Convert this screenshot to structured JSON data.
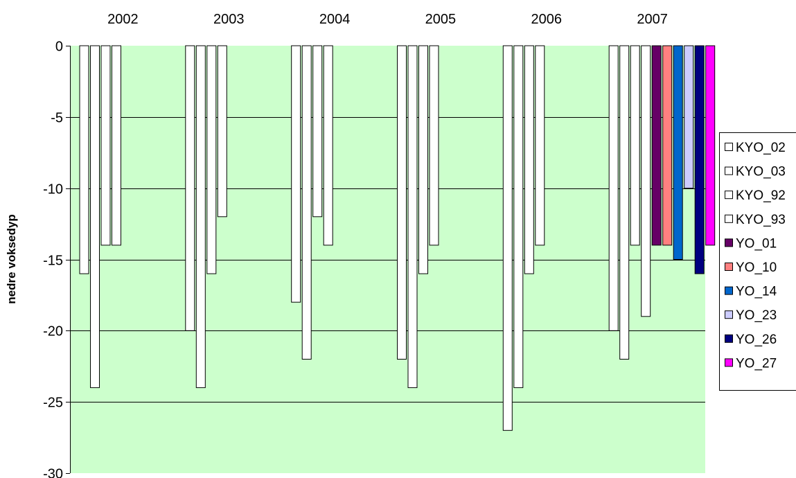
{
  "chart_data": {
    "type": "bar",
    "title": "",
    "xlabel": "",
    "ylabel": "nedre voksedyp",
    "ylim": [
      -30,
      0
    ],
    "yticks": [
      0,
      -5,
      -10,
      -15,
      -20,
      -25,
      -30
    ],
    "grid": true,
    "legend_position": "right",
    "plot_background": "#ccffcc",
    "categories": [
      "2002",
      "2003",
      "2004",
      "2005",
      "2006",
      "2007"
    ],
    "series": [
      {
        "name": "KYO_02",
        "color": "#ffffff",
        "values": [
          -16,
          -20,
          -18,
          -22,
          -27,
          -20
        ]
      },
      {
        "name": "KYO_03",
        "color": "#ffffff",
        "values": [
          -24,
          -24,
          -22,
          -24,
          -24,
          -22
        ]
      },
      {
        "name": "KYO_92",
        "color": "#ffffff",
        "values": [
          -14,
          -16,
          -12,
          -16,
          -16,
          -14
        ]
      },
      {
        "name": "KYO_93",
        "color": "#ffffff",
        "values": [
          -14,
          -12,
          -14,
          -14,
          -14,
          -19
        ]
      },
      {
        "name": "YO_01",
        "color": "#660066",
        "values": [
          null,
          null,
          null,
          null,
          null,
          -14
        ]
      },
      {
        "name": "YO_10",
        "color": "#ff8080",
        "values": [
          null,
          null,
          null,
          null,
          null,
          -14
        ]
      },
      {
        "name": "YO_14",
        "color": "#0066cc",
        "values": [
          null,
          null,
          null,
          null,
          null,
          -15
        ]
      },
      {
        "name": "YO_23",
        "color": "#ccccff",
        "values": [
          null,
          null,
          null,
          null,
          null,
          -10
        ]
      },
      {
        "name": "YO_26",
        "color": "#000080",
        "values": [
          null,
          null,
          null,
          null,
          null,
          -16
        ]
      },
      {
        "name": "YO_27",
        "color": "#ff00ff",
        "values": [
          null,
          null,
          null,
          null,
          null,
          -14
        ]
      }
    ]
  }
}
